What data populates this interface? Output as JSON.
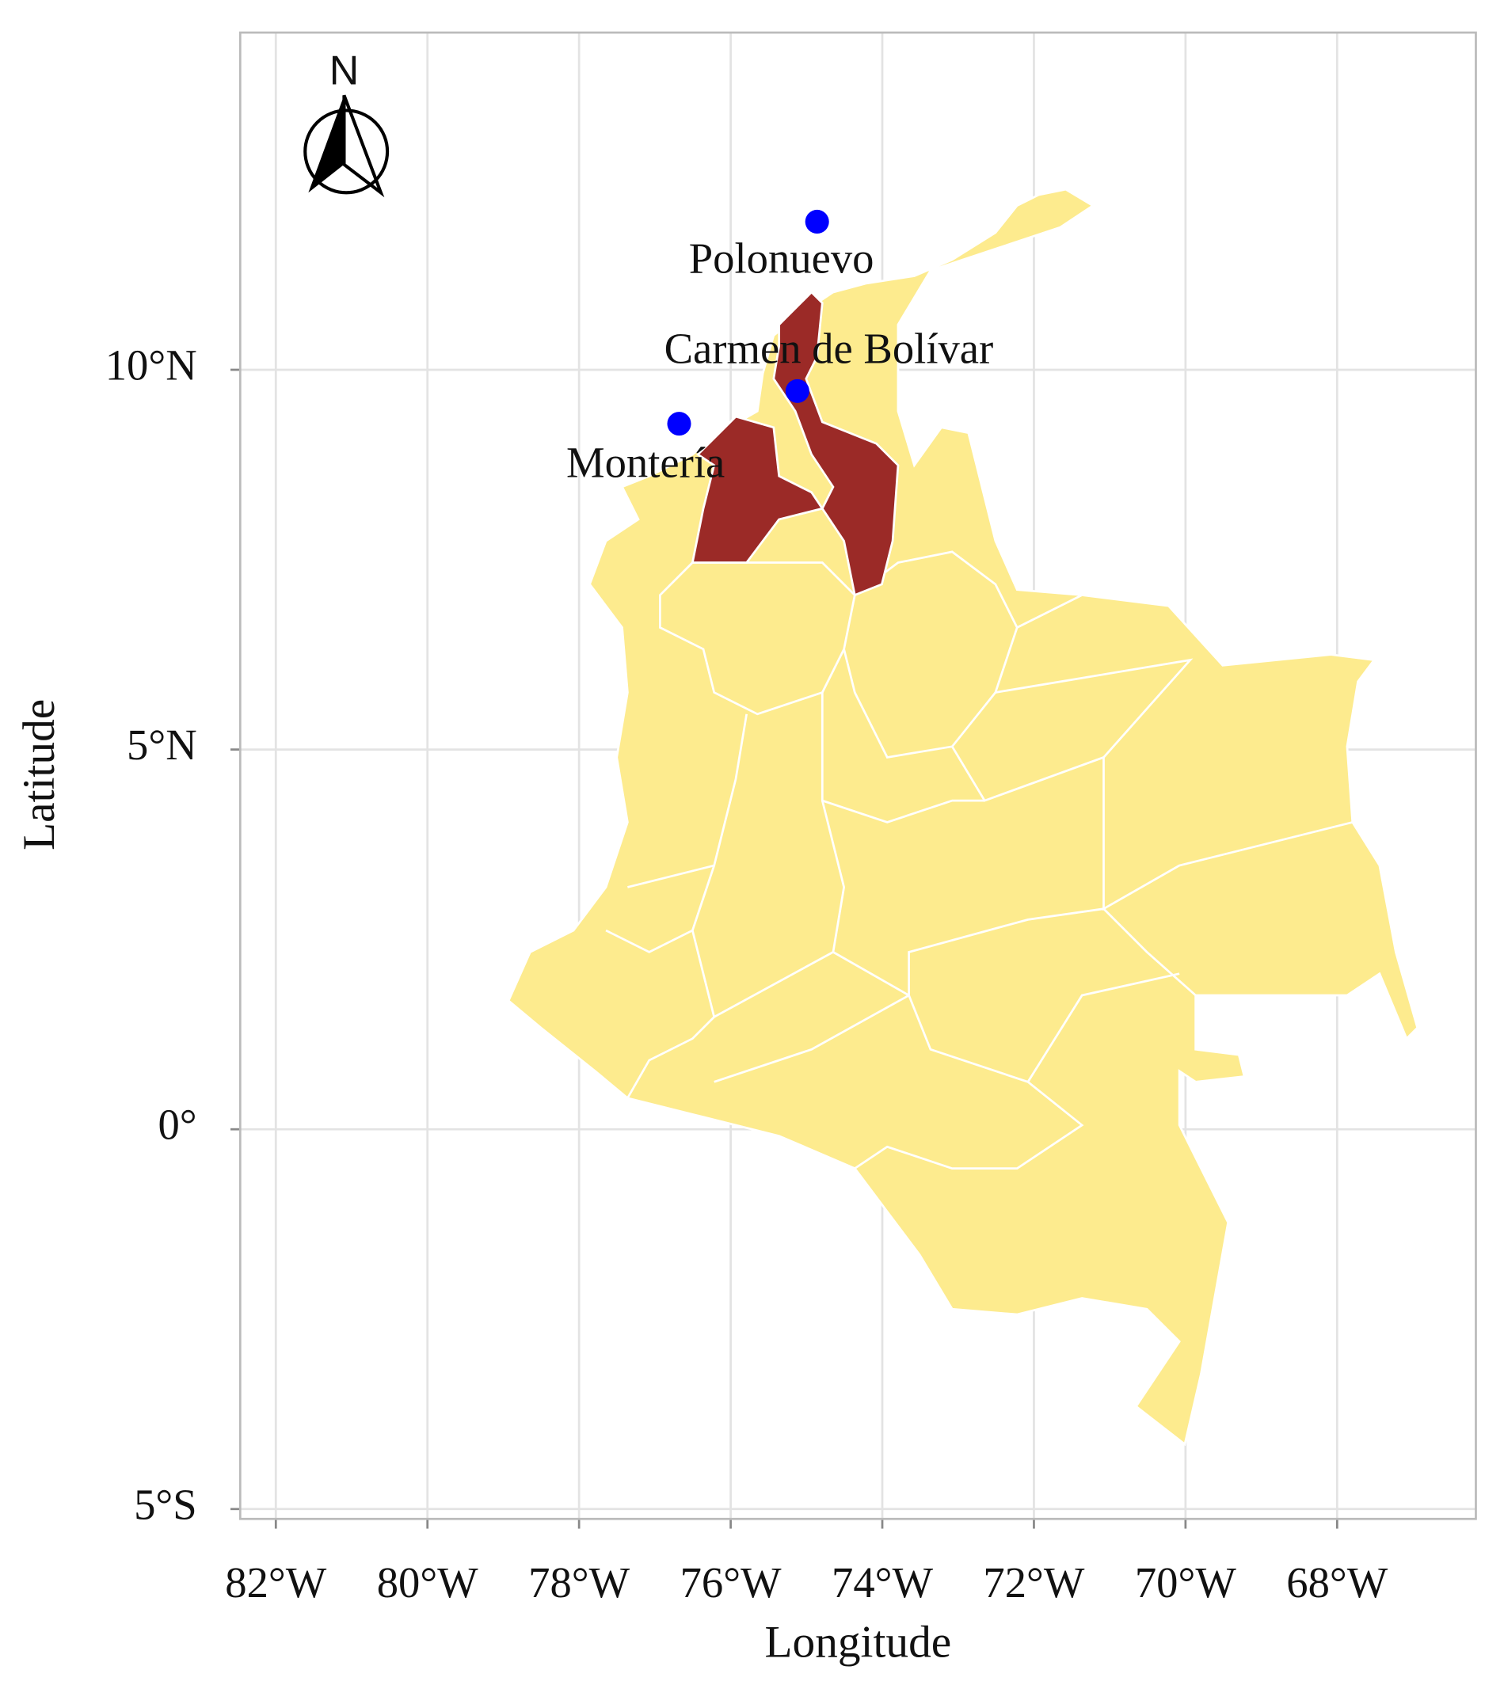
{
  "chart_data": {
    "type": "map",
    "x_label": "Longitude",
    "y_label": "Latitude",
    "north_arrow_label": "N",
    "xlim": [
      -82.47,
      -66.17
    ],
    "ylim": [
      -5.13,
      14.44
    ],
    "xticks": [
      {
        "value": -82,
        "label": "82°W"
      },
      {
        "value": -80,
        "label": "80°W"
      },
      {
        "value": -78,
        "label": "78°W"
      },
      {
        "value": -76,
        "label": "76°W"
      },
      {
        "value": -74,
        "label": "74°W"
      },
      {
        "value": -72,
        "label": "72°W"
      },
      {
        "value": -70,
        "label": "70°W"
      },
      {
        "value": -68,
        "label": "68°W"
      }
    ],
    "yticks": [
      {
        "value": -5,
        "label": "5°S"
      },
      {
        "value": 0,
        "label": "0°"
      },
      {
        "value": 5,
        "label": "5°N"
      },
      {
        "value": 10,
        "label": "10°N"
      }
    ],
    "grid": true,
    "land_color": "#fdeb8e",
    "highlight_color": "#9b2a27",
    "points": {
      "color": "#0000ff",
      "names": [
        "Polonuevo",
        "Carmen de Bolívar",
        "Montería"
      ],
      "x": [
        -74.86,
        -75.12,
        -76.68
      ],
      "y": [
        11.95,
        9.72,
        9.29
      ]
    }
  }
}
